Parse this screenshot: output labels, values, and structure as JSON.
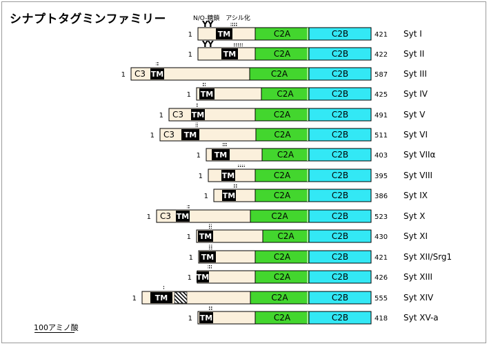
{
  "title": "シナプトタグミンファミリー",
  "annotations": {
    "glycosylation": "N/O-糖鎖",
    "acylation": "アシル化"
  },
  "scale_bar": {
    "label": "100アミノ酸",
    "amino_acids": 100
  },
  "domain_labels": {
    "tm": "TM",
    "c2a": "C2A",
    "c2b": "C2B",
    "c3": "C3"
  },
  "colors": {
    "protein_body": "#fbf0dc",
    "c2a": "#43d62e",
    "c2b": "#33e8f5",
    "tm": "#000000",
    "outline": "#000000"
  },
  "proteins": [
    {
      "name": "Syt I",
      "start": "1",
      "length": "421",
      "has_c3": false,
      "glyco_y": true,
      "tm_hatch": false
    },
    {
      "name": "Syt II",
      "start": "1",
      "length": "422",
      "has_c3": false,
      "glyco_y": true,
      "tm_hatch": false
    },
    {
      "name": "Syt III",
      "start": "1",
      "length": "587",
      "has_c3": true,
      "glyco_y": false,
      "tm_hatch": false
    },
    {
      "name": "Syt IV",
      "start": "1",
      "length": "425",
      "has_c3": false,
      "glyco_y": false,
      "tm_hatch": false
    },
    {
      "name": "Syt V",
      "start": "1",
      "length": "491",
      "has_c3": true,
      "glyco_y": false,
      "tm_hatch": false
    },
    {
      "name": "Syt VI",
      "start": "1",
      "length": "511",
      "has_c3": true,
      "glyco_y": false,
      "tm_hatch": false
    },
    {
      "name": "Syt VIIα",
      "start": "1",
      "length": "403",
      "has_c3": false,
      "glyco_y": false,
      "tm_hatch": false
    },
    {
      "name": "Syt VIII",
      "start": "1",
      "length": "395",
      "has_c3": false,
      "glyco_y": false,
      "tm_hatch": false
    },
    {
      "name": "Syt IX",
      "start": "1",
      "length": "386",
      "has_c3": false,
      "glyco_y": false,
      "tm_hatch": false
    },
    {
      "name": "Syt X",
      "start": "1",
      "length": "523",
      "has_c3": true,
      "glyco_y": false,
      "tm_hatch": false
    },
    {
      "name": "Syt XI",
      "start": "1",
      "length": "430",
      "has_c3": false,
      "glyco_y": false,
      "tm_hatch": false
    },
    {
      "name": "Syt XII/Srg1",
      "start": "1",
      "length": "421",
      "has_c3": false,
      "glyco_y": false,
      "tm_hatch": false
    },
    {
      "name": "Syt XIII",
      "start": "1",
      "length": "426",
      "has_c3": false,
      "glyco_y": false,
      "tm_hatch": false
    },
    {
      "name": "Syt XIV",
      "start": "1",
      "length": "555",
      "has_c3": false,
      "glyco_y": false,
      "tm_hatch": true
    },
    {
      "name": "Syt XV-a",
      "start": "1",
      "length": "418",
      "has_c3": false,
      "glyco_y": false,
      "tm_hatch": false
    }
  ]
}
